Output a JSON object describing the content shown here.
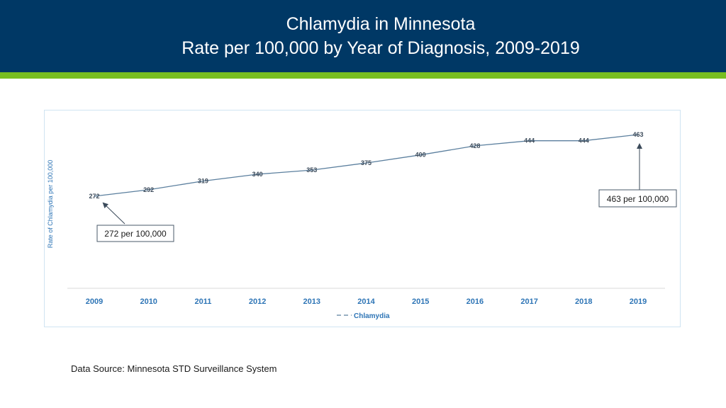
{
  "header": {
    "title_line1": "Chlamydia in Minnesota",
    "title_line2": "Rate per 100,000 by Year of Diagnosis, 2009-2019"
  },
  "colors": {
    "header_bg": "#003865",
    "header_stripe": "#78be21",
    "line": "#5b7f9e",
    "axis_text": "#2e75b6"
  },
  "chart_data": {
    "type": "line",
    "title": "",
    "xlabel": "",
    "ylabel": "Rate of Chlamydia per 100,000",
    "categories": [
      "2009",
      "2010",
      "2011",
      "2012",
      "2013",
      "2014",
      "2015",
      "2016",
      "2017",
      "2018",
      "2019"
    ],
    "series": [
      {
        "name": "Chlamydia",
        "values": [
          272,
          292,
          319,
          340,
          353,
          375,
          400,
          428,
          444,
          444,
          463
        ]
      }
    ],
    "ylim": [
      0,
      500
    ],
    "grid": false,
    "legend": "bottom",
    "annotations": [
      {
        "text": "272 per 100,000",
        "category": "2009"
      },
      {
        "text": "463 per 100,000",
        "category": "2019"
      }
    ]
  },
  "footer": {
    "source": "Data Source: Minnesota STD Surveillance System"
  }
}
